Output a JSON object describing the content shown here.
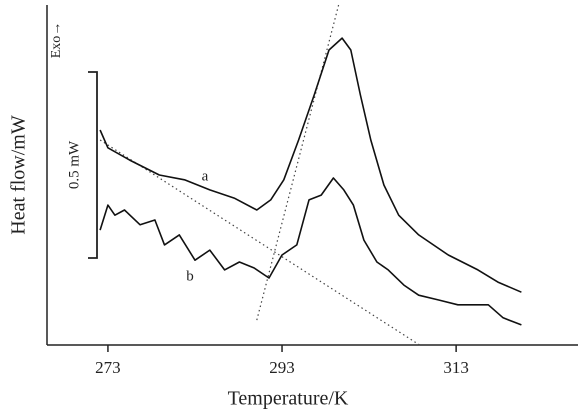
{
  "chart_data": {
    "type": "line",
    "xlabel": "Temperature/K",
    "ylabel": "Heat flow/mW",
    "direction_label": "Exo→",
    "xlim": [
      266,
      327
    ],
    "xticks": [
      273,
      293,
      313
    ],
    "ylim": [
      0,
      0.914
    ],
    "scale_bar": {
      "value": 0.5,
      "label": "0.5 mW"
    },
    "series": [
      {
        "name": "a",
        "color": "#111",
        "x": [
          272.1,
          273.0,
          275.5,
          278.9,
          281.8,
          284.7,
          287.5,
          290.1,
          291.7,
          293.2,
          294.9,
          296.7,
          298.4,
          299.9,
          300.9,
          302.0,
          303.2,
          304.7,
          306.4,
          308.7,
          312.1,
          315.5,
          317.8,
          320.5
        ],
        "values": [
          0.578,
          0.53,
          0.497,
          0.457,
          0.444,
          0.417,
          0.395,
          0.363,
          0.39,
          0.444,
          0.551,
          0.672,
          0.793,
          0.825,
          0.793,
          0.672,
          0.551,
          0.43,
          0.349,
          0.296,
          0.242,
          0.202,
          0.169,
          0.142
        ]
      },
      {
        "name": "b",
        "color": "#111",
        "x": [
          272.1,
          273.0,
          273.8,
          274.9,
          276.7,
          278.4,
          279.5,
          281.2,
          283.0,
          284.7,
          286.4,
          288.1,
          289.8,
          291.5,
          293.0,
          294.7,
          296.1,
          297.5,
          298.9,
          300.1,
          301.2,
          302.4,
          303.9,
          305.2,
          307.0,
          308.7,
          311.0,
          313.2,
          316.7,
          318.4,
          319.6,
          320.5
        ],
        "values": [
          0.309,
          0.376,
          0.349,
          0.363,
          0.323,
          0.336,
          0.269,
          0.296,
          0.228,
          0.255,
          0.202,
          0.223,
          0.207,
          0.18,
          0.242,
          0.269,
          0.39,
          0.403,
          0.449,
          0.417,
          0.376,
          0.282,
          0.223,
          0.202,
          0.161,
          0.134,
          0.121,
          0.108,
          0.108,
          0.073,
          0.062,
          0.054
        ]
      }
    ],
    "guide_lines": [
      {
        "x": [
          272.1,
          308.8
        ],
        "values": [
          0.551,
          0.0
        ]
      },
      {
        "x": [
          290.1,
          299.5
        ],
        "values": [
          0.067,
          0.914
        ]
      }
    ]
  }
}
